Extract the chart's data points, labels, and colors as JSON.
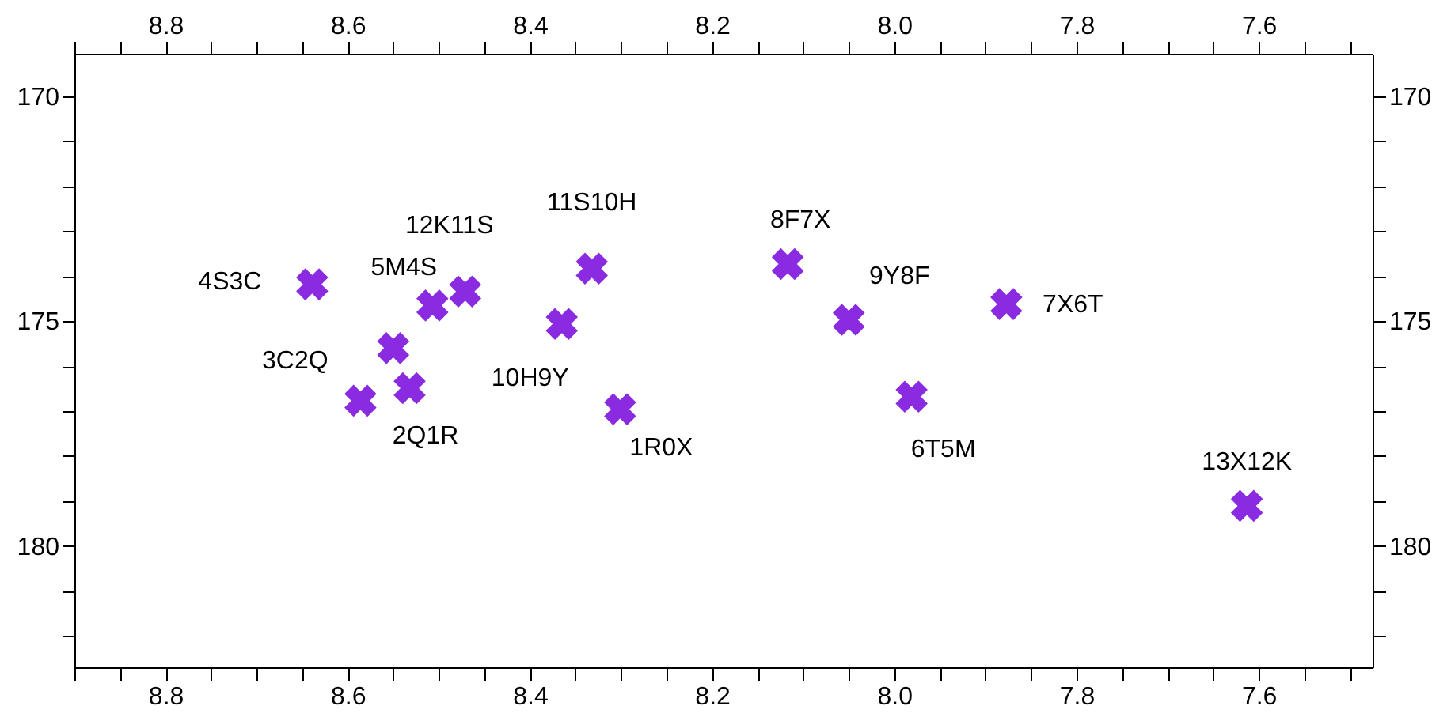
{
  "chart_data": {
    "type": "scatter",
    "x": [
      8.639,
      8.507,
      8.471,
      8.332,
      8.365,
      8.55,
      8.532,
      8.586,
      8.301,
      8.117,
      8.05,
      7.877,
      7.981,
      7.613
    ],
    "series": [
      {
        "color": "#8a2be2",
        "values": [
          174.18,
          174.65,
          174.34,
          173.83,
          175.06,
          175.6,
          176.49,
          176.77,
          176.96,
          173.73,
          174.97,
          174.62,
          176.68,
          179.11
        ]
      }
    ],
    "marker": "cross",
    "xlim": [
      8.9,
      7.475
    ],
    "ylim": [
      182.7,
      169.05
    ],
    "xticks": [
      {
        "value": 8.9,
        "label": null
      },
      {
        "value": 8.85,
        "label": null
      },
      {
        "value": 8.8,
        "label": "8.8"
      },
      {
        "value": 8.75,
        "label": null
      },
      {
        "value": 8.7,
        "label": null
      },
      {
        "value": 8.65,
        "label": null
      },
      {
        "value": 8.6,
        "label": "8.6"
      },
      {
        "value": 8.55,
        "label": null
      },
      {
        "value": 8.5,
        "label": null
      },
      {
        "value": 8.45,
        "label": null
      },
      {
        "value": 8.4,
        "label": "8.4"
      },
      {
        "value": 8.35,
        "label": null
      },
      {
        "value": 8.3,
        "label": null
      },
      {
        "value": 8.25,
        "label": null
      },
      {
        "value": 8.2,
        "label": "8.2"
      },
      {
        "value": 8.15,
        "label": null
      },
      {
        "value": 8.1,
        "label": null
      },
      {
        "value": 8.05,
        "label": null
      },
      {
        "value": 8.0,
        "label": "8.0"
      },
      {
        "value": 7.95,
        "label": null
      },
      {
        "value": 7.9,
        "label": null
      },
      {
        "value": 7.85,
        "label": null
      },
      {
        "value": 7.8,
        "label": "7.8"
      },
      {
        "value": 7.75,
        "label": null
      },
      {
        "value": 7.7,
        "label": null
      },
      {
        "value": 7.65,
        "label": null
      },
      {
        "value": 7.6,
        "label": "7.6"
      },
      {
        "value": 7.55,
        "label": null
      },
      {
        "value": 7.5,
        "label": null
      }
    ],
    "yticks": [
      {
        "value": 182,
        "label": null
      },
      {
        "value": 181,
        "label": null
      },
      180,
      {
        "value": 179,
        "label": null
      },
      {
        "value": 178,
        "label": null
      },
      {
        "value": 177,
        "label": null
      },
      {
        "value": 176,
        "label": null
      },
      175,
      {
        "value": 174,
        "label": null
      },
      {
        "value": 173,
        "label": null
      },
      {
        "value": 172,
        "label": null
      },
      {
        "value": 171,
        "label": null
      },
      170
    ],
    "x2lim": [
      8.9,
      7.475
    ],
    "y2lim": [
      182.7,
      169.05
    ],
    "x2ticks": [
      {
        "value": 8.9,
        "label": null
      },
      {
        "value": 8.85,
        "label": null
      },
      {
        "value": 8.8,
        "label": "8.8"
      },
      {
        "value": 8.75,
        "label": null
      },
      {
        "value": 8.7,
        "label": null
      },
      {
        "value": 8.65,
        "label": null
      },
      {
        "value": 8.6,
        "label": "8.6"
      },
      {
        "value": 8.55,
        "label": null
      },
      {
        "value": 8.5,
        "label": null
      },
      {
        "value": 8.45,
        "label": null
      },
      {
        "value": 8.4,
        "label": "8.4"
      },
      {
        "value": 8.35,
        "label": null
      },
      {
        "value": 8.3,
        "label": null
      },
      {
        "value": 8.25,
        "label": null
      },
      {
        "value": 8.2,
        "label": "8.2"
      },
      {
        "value": 8.15,
        "label": null
      },
      {
        "value": 8.1,
        "label": null
      },
      {
        "value": 8.05,
        "label": null
      },
      {
        "value": 8.0,
        "label": "8.0"
      },
      {
        "value": 7.95,
        "label": null
      },
      {
        "value": 7.9,
        "label": null
      },
      {
        "value": 7.85,
        "label": null
      },
      {
        "value": 7.8,
        "label": "7.8"
      },
      {
        "value": 7.75,
        "label": null
      },
      {
        "value": 7.7,
        "label": null
      },
      {
        "value": 7.65,
        "label": null
      },
      {
        "value": 7.6,
        "label": "7.6"
      },
      {
        "value": 7.55,
        "label": null
      },
      {
        "value": 7.5,
        "label": null
      }
    ],
    "y2ticks": [
      {
        "value": 182,
        "label": null
      },
      {
        "value": 181,
        "label": null
      },
      180,
      {
        "value": 179,
        "label": null
      },
      {
        "value": 178,
        "label": null
      },
      {
        "value": 177,
        "label": null
      },
      {
        "value": 176,
        "label": null
      },
      175,
      {
        "value": 174,
        "label": null
      },
      {
        "value": 173,
        "label": null
      },
      {
        "value": 172,
        "label": null
      },
      {
        "value": 171,
        "label": null
      },
      170
    ],
    "grid": false,
    "annotations": [
      {
        "text": "4S3C",
        "x": 8.639,
        "y": 174.18
      },
      {
        "text": "5M4S",
        "x": 8.507,
        "y": 174.65
      },
      {
        "text": "12K11S",
        "x": 8.471,
        "y": 174.34
      },
      {
        "text": "11S10H",
        "x": 8.332,
        "y": 173.83
      },
      {
        "text": "10H9Y",
        "x": 8.365,
        "y": 175.06
      },
      {
        "text": "3C2Q",
        "x": 8.55,
        "y": 175.6
      },
      {
        "text": "2Q1R",
        "x": 8.532,
        "y": 176.49
      },
      {
        "text": "1R0X",
        "x": 8.301,
        "y": 176.96
      },
      {
        "text": "8F7X",
        "x": 8.117,
        "y": 173.73
      },
      {
        "text": "9Y8F",
        "x": 8.05,
        "y": 174.97
      },
      {
        "text": "7X6T",
        "x": 7.877,
        "y": 174.62
      },
      {
        "text": "6T5M",
        "x": 7.981,
        "y": 176.68
      },
      {
        "text": "13X12K",
        "x": 7.613,
        "y": 179.11
      }
    ]
  }
}
